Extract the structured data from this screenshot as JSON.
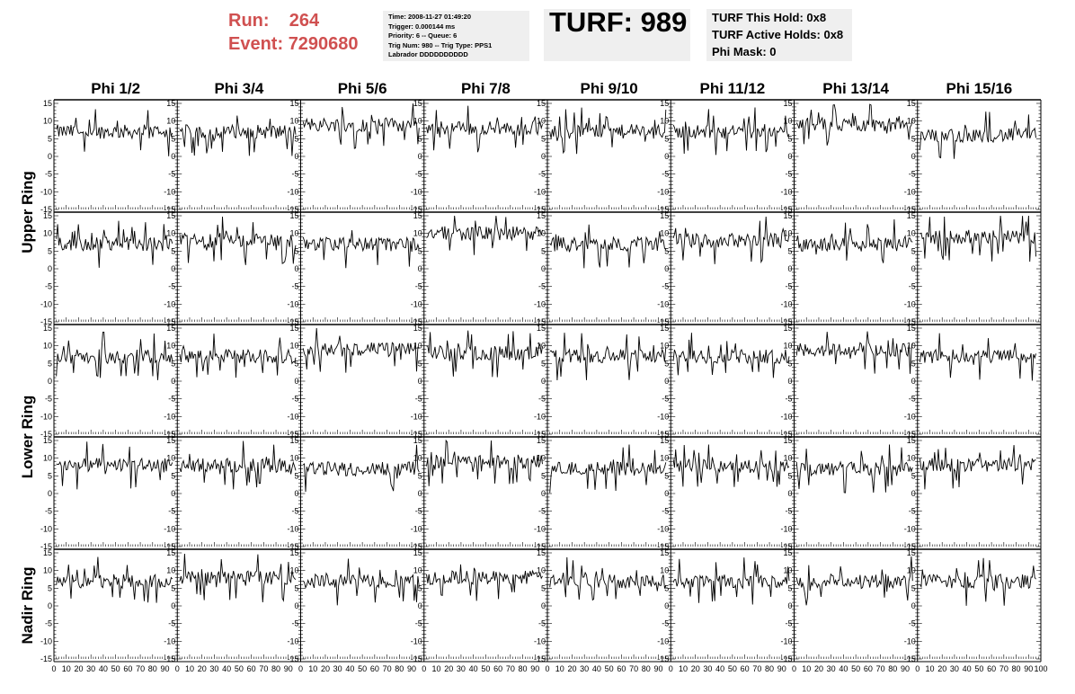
{
  "header": {
    "run_label": "Run:",
    "run_value": "264",
    "event_label": "Event:",
    "event_value": "7290680",
    "info_lines": [
      "Time: 2008-11-27 01:49:20",
      "Trigger: 0.000144 ms",
      "Priority: 6 -- Queue: 6",
      "Trig Num: 980 -- Trig Type: PPS1",
      "Labrador DDDDDDDDDD"
    ],
    "turf": "TURF: 989",
    "hold_lines": [
      "TURF This Hold: 0x8",
      "TURF Active Holds: 0x8",
      "Phi Mask: 0"
    ]
  },
  "colors": {
    "trace": "#000000",
    "run_text": "#d05050",
    "box_bg": "#efefef"
  },
  "chart_data": {
    "type": "line",
    "columns": [
      "Phi 1/2",
      "Phi 3/4",
      "Phi 5/6",
      "Phi 7/8",
      "Phi 9/10",
      "Phi 11/12",
      "Phi 13/14",
      "Phi 15/16"
    ],
    "rings": [
      "Upper Ring",
      "Lower Ring",
      "Nadir Ring"
    ],
    "rows_per_ring": [
      2,
      2,
      1
    ],
    "xlim": [
      0,
      100
    ],
    "ylim": [
      -15,
      15
    ],
    "y_ticks": [
      -15,
      -10,
      -5,
      0,
      5,
      10,
      15
    ],
    "x_ticks": [
      0,
      10,
      20,
      30,
      40,
      50,
      60,
      70,
      80,
      90
    ],
    "x_tick_labels_bottom": "0 10 20 30 40 50 60 70 80 90100 10 20 30 40 50 60 70 80 90100 10 20 30 40 50 60 70 80 90100 10 20 30 40 50 60 70 80 90100 10 20 30 40 50 60 70 80 90100 10 20 30 40 50 60 70 80 90100 10 20 30 40 50 60 70 80 90100 10 20 30 40 50 60 70 80 90100",
    "panel_means": [
      [
        7,
        7,
        9,
        8,
        7,
        7,
        9,
        6
      ],
      [
        7,
        8,
        7,
        10,
        7,
        8,
        7,
        9
      ],
      [
        7,
        7,
        9,
        8,
        7,
        7,
        9,
        7
      ],
      [
        8,
        8,
        7,
        9,
        7,
        8,
        7,
        8
      ],
      [
        7,
        8,
        7,
        8,
        7,
        7,
        7,
        7
      ]
    ],
    "points_per_trace": 96
  }
}
